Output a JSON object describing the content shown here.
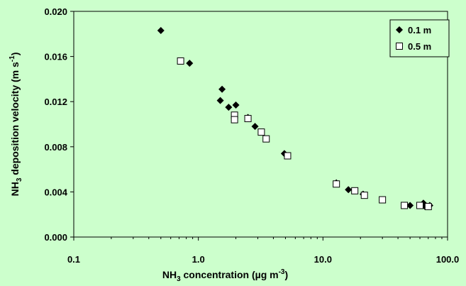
{
  "chart_data": {
    "type": "scatter",
    "xscale": "log",
    "xlim": [
      0.1,
      100.0
    ],
    "ylim": [
      0.0,
      0.02
    ],
    "xticks": [
      "0.1",
      "1.0",
      "10.0",
      "100.0"
    ],
    "yticks": [
      "0.000",
      "0.004",
      "0.008",
      "0.012",
      "0.016",
      "0.020"
    ],
    "xlabel": {
      "main": "NH",
      "sub": "3",
      "rest": " concentration (µg m",
      "sup": "-3",
      "end": ")"
    },
    "ylabel": {
      "main": "NH",
      "sub": "3",
      "rest": " deposition velocity (m s",
      "sup": "-1",
      "end": ")"
    },
    "grid": false,
    "legend_position": "top-right",
    "background_color": "#ccffcc",
    "series": [
      {
        "name": "0.1 m",
        "marker": "filled-diamond",
        "color": "#000000",
        "points": [
          [
            0.5,
            0.0183
          ],
          [
            0.85,
            0.0154
          ],
          [
            1.55,
            0.0131
          ],
          [
            1.5,
            0.0121
          ],
          [
            1.75,
            0.0115
          ],
          [
            2.0,
            0.0117
          ],
          [
            2.5,
            0.0106
          ],
          [
            2.85,
            0.0098
          ],
          [
            4.9,
            0.0074
          ],
          [
            12.8,
            0.0048
          ],
          [
            16.0,
            0.0042
          ],
          [
            21.0,
            0.0038
          ],
          [
            30.0,
            0.0033
          ],
          [
            50.0,
            0.0028
          ],
          [
            64.0,
            0.003
          ],
          [
            66.0,
            0.0027
          ],
          [
            72.0,
            0.0028
          ]
        ]
      },
      {
        "name": "0.5 m",
        "marker": "open-square",
        "color": "#000000",
        "points": [
          [
            0.72,
            0.0156
          ],
          [
            1.95,
            0.0108
          ],
          [
            1.95,
            0.0104
          ],
          [
            2.5,
            0.0105
          ],
          [
            3.2,
            0.0093
          ],
          [
            3.5,
            0.0087
          ],
          [
            5.2,
            0.0072
          ],
          [
            12.8,
            0.0047
          ],
          [
            18.0,
            0.0041
          ],
          [
            21.5,
            0.0037
          ],
          [
            30.0,
            0.0033
          ],
          [
            45.0,
            0.0028
          ],
          [
            60.0,
            0.0028
          ],
          [
            70.0,
            0.0027
          ]
        ]
      }
    ]
  }
}
